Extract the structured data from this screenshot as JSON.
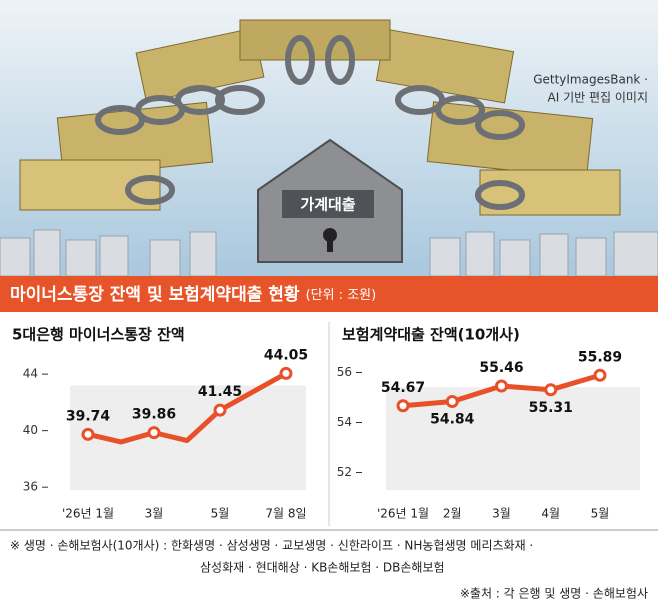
{
  "image": {
    "credit_line1": "GettyImagesBank ·",
    "credit_line2": "AI 기반 편집 이미지",
    "house_label": "가계대출"
  },
  "banner": {
    "title": "마이너스통장 잔액 및 보험계약대출 현황",
    "unit": "(단위 : 조원)"
  },
  "chart_data": [
    {
      "type": "line",
      "title": "5대은행 마이너스통장 잔액",
      "color": "#e8502a",
      "categories": [
        "'26년 1월",
        null,
        "3월",
        null,
        "5월",
        null,
        "7월 8일"
      ],
      "values": [
        39.74,
        39.2,
        39.86,
        39.3,
        41.45,
        42.75,
        44.05
      ],
      "value_labels": [
        "39.74",
        null,
        "39.86",
        null,
        "41.45",
        null,
        "44.05"
      ],
      "ylim": [
        35.8,
        45
      ],
      "yticks": [
        36,
        40,
        44
      ]
    },
    {
      "type": "line",
      "title": "보험계약대출 잔액(10개사)",
      "color": "#e8502a",
      "categories": [
        "'26년 1월",
        "2월",
        "3월",
        "4월",
        "5월"
      ],
      "values": [
        54.67,
        54.84,
        55.46,
        55.31,
        55.89
      ],
      "value_labels": [
        "54.67",
        "54.84",
        "55.46",
        "55.31",
        "55.89"
      ],
      "ylim": [
        51.3,
        56.5
      ],
      "yticks": [
        52,
        54,
        56
      ]
    }
  ],
  "footnote": {
    "line1": "※ 생명 · 손해보험사(10개사) : 한화생명 · 삼성생명 · 교보생명 · 신한라이프 · NH농협생명 메리츠화재 ·",
    "line2": "삼성화재 · 현대해상 · KB손해보험 · DB손해보험",
    "source": "※출처 : 각 은행 및 생명 · 손해보험사"
  }
}
